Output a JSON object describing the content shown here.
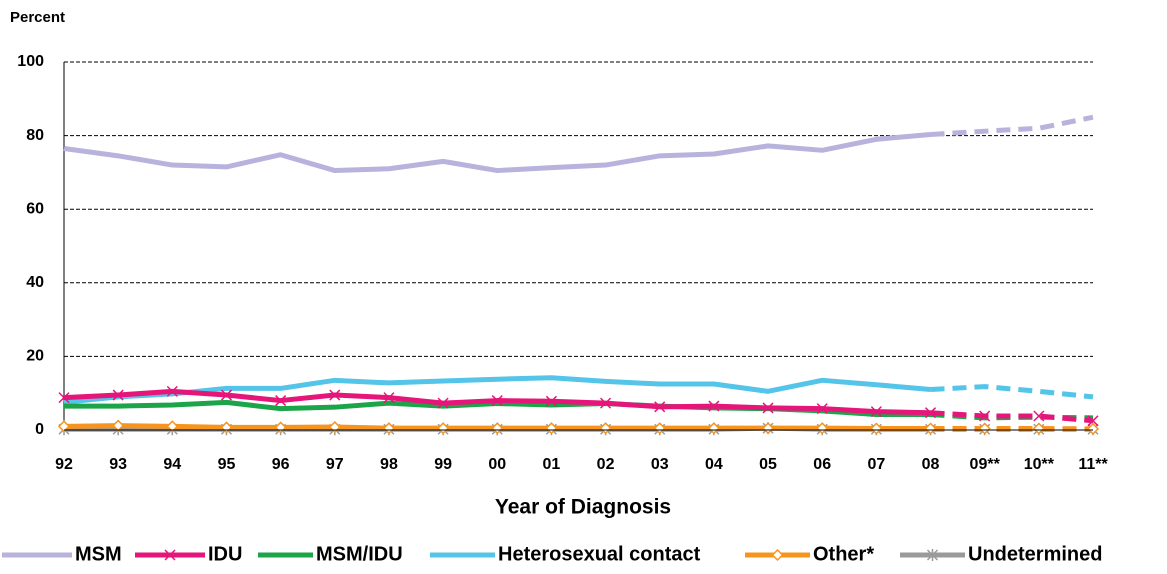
{
  "chart_data": {
    "type": "line",
    "y_axis_label": "Percent",
    "x_axis_label": "Year of Diagnosis",
    "categories": [
      "92",
      "93",
      "94",
      "95",
      "96",
      "97",
      "98",
      "99",
      "00",
      "01",
      "02",
      "03",
      "04",
      "05",
      "06",
      "07",
      "08",
      "09**",
      "10**",
      "11**"
    ],
    "dash_from_category": "08",
    "ylim": [
      0,
      100
    ],
    "yticks": [
      0,
      20,
      40,
      60,
      80,
      100
    ],
    "grid": true,
    "legend": "bottom",
    "series": [
      {
        "name": "MSM",
        "color": "#b7b3dc",
        "marker": "none",
        "values": [
          76.5,
          74.5,
          72,
          71.5,
          74.8,
          70.5,
          71,
          73,
          70.5,
          71.3,
          72,
          74.5,
          75,
          77.2,
          76,
          79,
          80.3,
          81.2,
          82,
          85
        ]
      },
      {
        "name": "IDU",
        "color": "#e5157a",
        "marker": "x",
        "values": [
          8.8,
          9.5,
          10.5,
          9.5,
          8,
          9.5,
          8.8,
          7.3,
          8,
          7.8,
          7.3,
          6.3,
          6.5,
          6,
          5.8,
          5,
          4.7,
          3.8,
          3.8,
          2.5
        ]
      },
      {
        "name": "MSM/IDU",
        "color": "#1ba548",
        "marker": "none",
        "values": [
          6.5,
          6.5,
          6.8,
          7.5,
          5.8,
          6.2,
          7.3,
          6.5,
          7.2,
          6.8,
          7.2,
          6.5,
          6,
          5.8,
          5.2,
          4.2,
          4.2,
          3.3,
          3.5,
          3.3
        ]
      },
      {
        "name": "Heterosexual contact",
        "color": "#55c4e9",
        "marker": "none",
        "values": [
          7.5,
          9,
          9.8,
          11.3,
          11.3,
          13.5,
          12.8,
          13.3,
          13.8,
          14.2,
          13.2,
          12.5,
          12.5,
          10.5,
          13.5,
          12.3,
          11,
          11.8,
          10.5,
          9
        ]
      },
      {
        "name": "Other*",
        "color": "#f7941d",
        "marker": "diamond",
        "values": [
          1,
          1.2,
          1,
          0.7,
          0.7,
          0.8,
          0.5,
          0.5,
          0.5,
          0.5,
          0.5,
          0.5,
          0.5,
          0.5,
          0.5,
          0.4,
          0.4,
          0.4,
          0.4,
          0.3
        ]
      },
      {
        "name": "Undetermined",
        "color": "#9a9a9a",
        "marker": "asterisk",
        "values": [
          0.2,
          0.2,
          0.2,
          0.2,
          0.2,
          0.2,
          0.2,
          0.2,
          0.2,
          0.2,
          0.2,
          0.2,
          0.2,
          0.5,
          0.2,
          0.2,
          0.2,
          0.2,
          0.2,
          0.2
        ]
      }
    ]
  }
}
